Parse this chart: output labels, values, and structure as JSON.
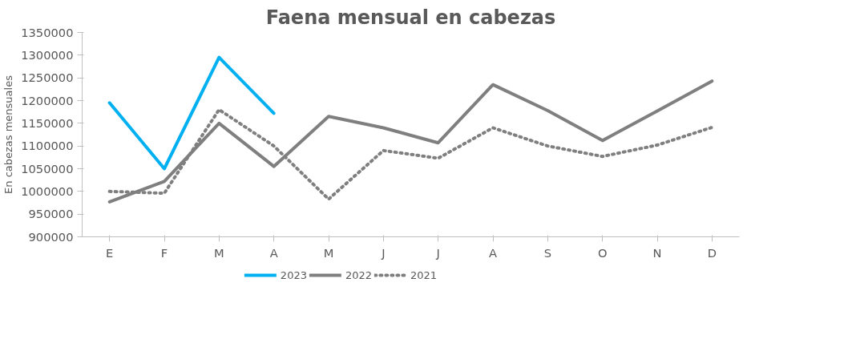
{
  "chart_data": {
    "type": "line",
    "title": "Faena mensual en cabezas",
    "ylabel": "En cabezas mensuales",
    "categories": [
      "E",
      "F",
      "M",
      "A",
      "M",
      "J",
      "J",
      "A",
      "S",
      "O",
      "N",
      "D"
    ],
    "series": [
      {
        "name": "2023",
        "color": "#00b0f0",
        "line_style": "solid",
        "values": [
          1195000,
          1050000,
          1295000,
          1172000,
          null,
          null,
          null,
          null,
          null,
          null,
          null,
          null
        ]
      },
      {
        "name": "2022",
        "color": "#7f7f7f",
        "line_style": "solid",
        "values": [
          977000,
          1022000,
          1150000,
          1055000,
          1165000,
          1140000,
          1107000,
          1235000,
          1178000,
          1112000,
          1177000,
          1243000
        ]
      },
      {
        "name": "2021",
        "color": "#7f7f7f",
        "line_style": "dotted",
        "values": [
          1000000,
          996000,
          1180000,
          1100000,
          983000,
          1090000,
          1073000,
          1140000,
          1100000,
          1077000,
          1102000,
          1141000
        ]
      }
    ],
    "ylim": [
      900000,
      1350000
    ],
    "yticks": [
      900000,
      950000,
      1000000,
      1050000,
      1100000,
      1150000,
      1200000,
      1250000,
      1300000,
      1350000
    ],
    "grid": false,
    "legend": "bottom",
    "marker": "none"
  }
}
